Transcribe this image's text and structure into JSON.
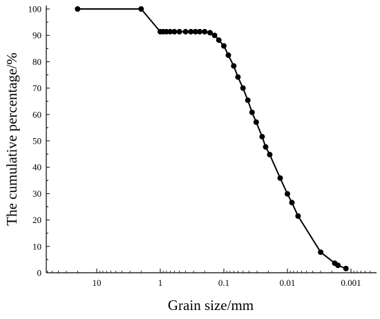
{
  "chart_data": {
    "type": "line",
    "xlabel": "Grain size/mm",
    "ylabel": "The cumulative percentage/%",
    "x_scale": "log",
    "x_reversed": true,
    "xlim": [
      30,
      0.0008
    ],
    "ylim": [
      0,
      100
    ],
    "x_ticks": [
      {
        "value": 10,
        "label": "10"
      },
      {
        "value": 1,
        "label": "1"
      },
      {
        "value": 0.1,
        "label": "0.1"
      },
      {
        "value": 0.01,
        "label": "0.01"
      },
      {
        "value": 0.001,
        "label": "0.001"
      }
    ],
    "y_ticks": [
      0,
      10,
      20,
      30,
      40,
      50,
      60,
      70,
      80,
      90,
      100
    ],
    "grid": false,
    "legend": false,
    "series": [
      {
        "color": "#000000",
        "marker": "circle",
        "points": [
          {
            "x": 20,
            "y": 100
          },
          {
            "x": 2,
            "y": 100
          },
          {
            "x": 1,
            "y": 91.4
          },
          {
            "x": 0.9,
            "y": 91.4
          },
          {
            "x": 0.8,
            "y": 91.4
          },
          {
            "x": 0.7,
            "y": 91.4
          },
          {
            "x": 0.6,
            "y": 91.4
          },
          {
            "x": 0.5,
            "y": 91.4
          },
          {
            "x": 0.4,
            "y": 91.4
          },
          {
            "x": 0.33,
            "y": 91.4
          },
          {
            "x": 0.28,
            "y": 91.4
          },
          {
            "x": 0.24,
            "y": 91.4
          },
          {
            "x": 0.2,
            "y": 91.4
          },
          {
            "x": 0.165,
            "y": 91.0
          },
          {
            "x": 0.14,
            "y": 90.0
          },
          {
            "x": 0.12,
            "y": 88.2
          },
          {
            "x": 0.1,
            "y": 86.0
          },
          {
            "x": 0.085,
            "y": 82.5
          },
          {
            "x": 0.07,
            "y": 78.4
          },
          {
            "x": 0.06,
            "y": 74.2
          },
          {
            "x": 0.05,
            "y": 70.0
          },
          {
            "x": 0.042,
            "y": 65.4
          },
          {
            "x": 0.036,
            "y": 60.8
          },
          {
            "x": 0.031,
            "y": 57.1
          },
          {
            "x": 0.025,
            "y": 51.6
          },
          {
            "x": 0.022,
            "y": 47.7
          },
          {
            "x": 0.019,
            "y": 44.8
          },
          {
            "x": 0.013,
            "y": 35.9
          },
          {
            "x": 0.01,
            "y": 29.9
          },
          {
            "x": 0.0085,
            "y": 26.6
          },
          {
            "x": 0.0068,
            "y": 21.5
          },
          {
            "x": 0.003,
            "y": 7.8
          },
          {
            "x": 0.0018,
            "y": 3.6
          },
          {
            "x": 0.0016,
            "y": 2.8
          },
          {
            "x": 0.0012,
            "y": 1.6
          }
        ]
      }
    ]
  }
}
